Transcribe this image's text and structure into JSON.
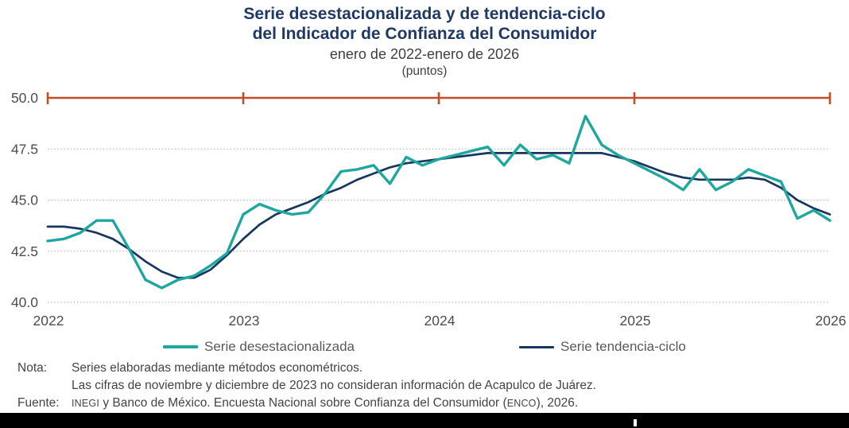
{
  "title": {
    "line1": "Serie desestacionalizada y de tendencia-ciclo",
    "line2": "del Indicador de Confianza del Consumidor",
    "subtitle": "enero de 2022-enero de 2026",
    "units": "(puntos)"
  },
  "colors": {
    "title": "#1f3864",
    "axis_top_line": "#c24e27",
    "gridline": "#a9a9a9",
    "tick_label": "#4d4d4d",
    "series_desestacionalizada": "#1ea79f",
    "series_tendencia": "#17375e",
    "legend_text": "#595959",
    "note_text": "#444444",
    "bottom_bar": "#000000"
  },
  "chart_data": {
    "type": "line",
    "title": "Serie desestacionalizada y de tendencia-ciclo del Indicador de Confianza del Consumidor",
    "subtitle": "enero de 2022-enero de 2026",
    "units": "puntos",
    "frequency": "monthly",
    "x_start": "2022-01",
    "x_end": "2026-01",
    "x_years": [
      2022,
      2023,
      2024,
      2025,
      2026
    ],
    "y_ticks": [
      50.0,
      47.5,
      45.0,
      42.5,
      40.0
    ],
    "ylim": [
      40.0,
      50.0
    ],
    "grid": "dotted horizontal gridlines; solid red reference line with year ticks at 50.0",
    "legend_position": "bottom",
    "series": [
      {
        "name": "Serie desestacionalizada",
        "color": "#1ea79f",
        "values": [
          43.0,
          43.1,
          43.4,
          44.0,
          44.0,
          42.6,
          41.1,
          40.7,
          41.1,
          41.3,
          41.8,
          42.4,
          44.3,
          44.8,
          44.5,
          44.3,
          44.4,
          45.3,
          46.4,
          46.5,
          46.7,
          45.8,
          47.1,
          46.7,
          47.0,
          47.2,
          47.4,
          47.6,
          46.7,
          47.7,
          47.0,
          47.2,
          46.8,
          49.1,
          47.7,
          47.2,
          46.8,
          46.4,
          46.0,
          45.5,
          46.5,
          45.5,
          45.9,
          46.5,
          46.2,
          45.9,
          44.1,
          44.5,
          44.0
        ]
      },
      {
        "name": "Serie tendencia-ciclo",
        "color": "#17375e",
        "values": [
          43.7,
          43.7,
          43.6,
          43.4,
          43.1,
          42.6,
          42.0,
          41.5,
          41.2,
          41.2,
          41.6,
          42.3,
          43.1,
          43.8,
          44.3,
          44.6,
          44.9,
          45.3,
          45.6,
          46.0,
          46.3,
          46.6,
          46.8,
          46.9,
          47.0,
          47.1,
          47.2,
          47.3,
          47.3,
          47.3,
          47.3,
          47.3,
          47.3,
          47.3,
          47.3,
          47.1,
          46.9,
          46.6,
          46.3,
          46.1,
          46.0,
          46.0,
          46.0,
          46.1,
          46.0,
          45.6,
          45.0,
          44.6,
          44.3
        ]
      }
    ]
  },
  "legend": {
    "item1": "Serie desestacionalizada",
    "item2": "Serie tendencia-ciclo"
  },
  "notes": {
    "nota_label": "Nota:",
    "nota_line1": "Series elaboradas mediante métodos econométricos.",
    "nota_line2": "Las cifras de noviembre y diciembre de 2023 no consideran información de Acapulco de Juárez.",
    "fuente_label": "Fuente:",
    "fuente_part1": "INEGI",
    "fuente_part2": " y Banco de México. Encuesta Nacional sobre Confianza del Consumidor (",
    "fuente_part3": "ENCO",
    "fuente_part4": "), 2026."
  }
}
